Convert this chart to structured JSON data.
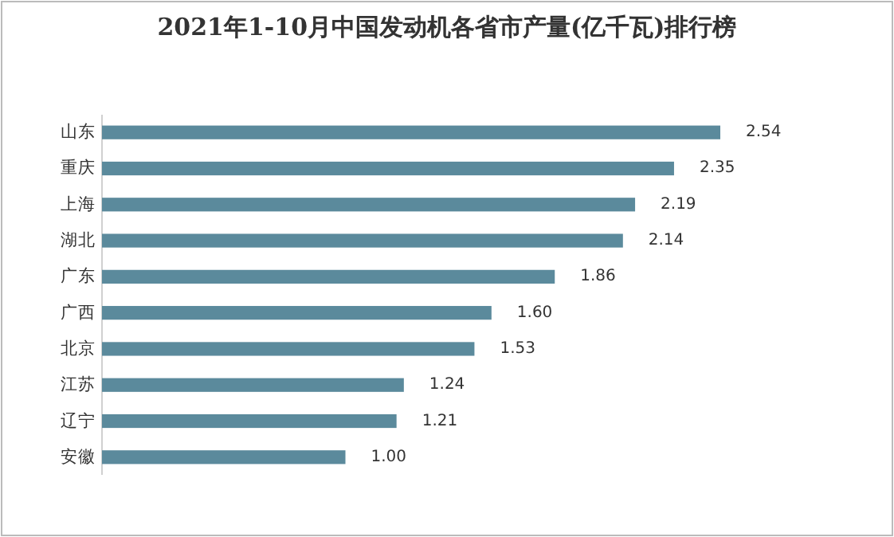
{
  "chart_data": {
    "type": "bar",
    "orientation": "horizontal",
    "title": "2021年1-10月中国发动机各省市产量(亿千瓦)排行榜",
    "categories": [
      "山东",
      "重庆",
      "上海",
      "湖北",
      "广东",
      "广西",
      "北京",
      "江苏",
      "辽宁",
      "安徽"
    ],
    "values": [
      2.54,
      2.35,
      2.19,
      2.14,
      1.86,
      1.6,
      1.53,
      1.24,
      1.21,
      1.0
    ],
    "value_labels": [
      "2.54",
      "2.35",
      "2.19",
      "2.14",
      "1.86",
      "1.60",
      "1.53",
      "1.24",
      "1.21",
      "1.00"
    ],
    "color": "#5b8a9c"
  }
}
